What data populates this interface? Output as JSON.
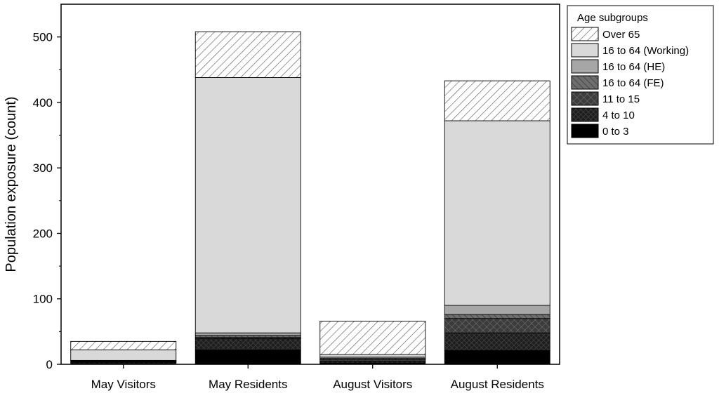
{
  "chart_data": {
    "type": "bar",
    "stacked": true,
    "title": "",
    "xlabel": "",
    "ylabel": "Population exposure (count)",
    "ylim": [
      0,
      550
    ],
    "yticks": [
      0,
      100,
      200,
      300,
      400,
      500
    ],
    "categories": [
      "May Visitors",
      "May Residents",
      "August Visitors",
      "August Residents"
    ],
    "legend": {
      "title": "Age subgroups",
      "placement": "outside-right-top"
    },
    "series": [
      {
        "name": "0 to 3",
        "values": [
          1,
          22,
          2,
          21
        ],
        "color": "#000000",
        "pattern": "solid"
      },
      {
        "name": "4 to 10",
        "values": [
          2,
          17,
          3,
          27
        ],
        "color": "#202020",
        "pattern": "crosshatch-fine"
      },
      {
        "name": "11 to 15",
        "values": [
          1,
          2,
          2,
          22
        ],
        "color": "#3c3c3c",
        "pattern": "crosshatch"
      },
      {
        "name": "16 to 64 (FE)",
        "values": [
          1,
          3,
          2,
          6
        ],
        "color": "#6e6e6e",
        "pattern": "diagonal"
      },
      {
        "name": "16 to 64 (HE)",
        "values": [
          1,
          4,
          2,
          14
        ],
        "color": "#a6a6a6",
        "pattern": "solid"
      },
      {
        "name": "16 to 64 (Working)",
        "values": [
          16,
          390,
          4,
          282
        ],
        "color": "#d9d9d9",
        "pattern": "solid"
      },
      {
        "name": "Over 65",
        "values": [
          13,
          70,
          51,
          61
        ],
        "color": "#ffffff",
        "pattern": "diagonal-light"
      }
    ]
  }
}
